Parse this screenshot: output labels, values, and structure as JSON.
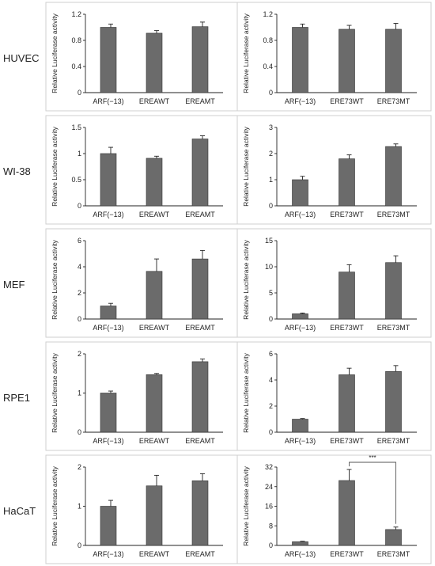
{
  "figure": {
    "y_axis_label": "Relative Luciferase activity",
    "rows": [
      {
        "label": "HUVEC",
        "charts": [
          {
            "type": "bar",
            "categories": [
              "ARF(−13)",
              "EREAWT",
              "EREAMT"
            ],
            "values": [
              1.0,
              0.91,
              1.01
            ],
            "errors": [
              0.05,
              0.04,
              0.07
            ],
            "ylim": [
              0,
              1.2
            ],
            "yticks": [
              "0",
              "0.4",
              "0.8",
              "1.2"
            ],
            "ytick_values": [
              0,
              0.4,
              0.8,
              1.2
            ],
            "ylabel": "Relative Luciferase activity",
            "color": "#6b6b6b"
          },
          {
            "type": "bar",
            "categories": [
              "ARF(−13)",
              "ERE73WT",
              "ERE73MT"
            ],
            "values": [
              1.0,
              0.97,
              0.97
            ],
            "errors": [
              0.05,
              0.06,
              0.09
            ],
            "ylim": [
              0,
              1.2
            ],
            "yticks": [
              "0",
              "0.4",
              "0.8",
              "1.2"
            ],
            "ytick_values": [
              0,
              0.4,
              0.8,
              1.2
            ],
            "ylabel": "Relative Luciferase activity",
            "color": "#6b6b6b"
          }
        ]
      },
      {
        "label": "WI-38",
        "charts": [
          {
            "type": "bar",
            "categories": [
              "ARF(−13)",
              "EREAWT",
              "EREAMT"
            ],
            "values": [
              1.0,
              0.91,
              1.28
            ],
            "errors": [
              0.12,
              0.04,
              0.06
            ],
            "ylim": [
              0,
              1.5
            ],
            "yticks": [
              "0",
              "0.5",
              "1",
              "1.5"
            ],
            "ytick_values": [
              0,
              0.5,
              1,
              1.5
            ],
            "ylabel": "Relative Luciferase activity",
            "color": "#6b6b6b"
          },
          {
            "type": "bar",
            "categories": [
              "ARF(−13)",
              "ERE73WT",
              "ERE73MT"
            ],
            "values": [
              1.0,
              1.8,
              2.27
            ],
            "errors": [
              0.13,
              0.15,
              0.1
            ],
            "ylim": [
              0,
              3
            ],
            "yticks": [
              "0",
              "1",
              "2",
              "3"
            ],
            "ytick_values": [
              0,
              1,
              2,
              3
            ],
            "ylabel": "Relative Luciferase activity",
            "color": "#6b6b6b"
          }
        ]
      },
      {
        "label": "MEF",
        "charts": [
          {
            "type": "bar",
            "categories": [
              "ARF(−13)",
              "EREAWT",
              "EREAMT"
            ],
            "values": [
              1.0,
              3.65,
              4.6
            ],
            "errors": [
              0.2,
              0.95,
              0.65
            ],
            "ylim": [
              0,
              6
            ],
            "yticks": [
              "0",
              "2",
              "4",
              "6"
            ],
            "ytick_values": [
              0,
              2,
              4,
              6
            ],
            "ylabel": "Relative Luciferase activity",
            "color": "#6b6b6b"
          },
          {
            "type": "bar",
            "categories": [
              "ARF(−13)",
              "ERE73WT",
              "ERE73MT"
            ],
            "values": [
              1.0,
              9.0,
              10.8
            ],
            "errors": [
              0.15,
              1.4,
              1.3
            ],
            "ylim": [
              0,
              15
            ],
            "yticks": [
              "0",
              "5",
              "10",
              "15"
            ],
            "ytick_values": [
              0,
              5,
              10,
              15
            ],
            "ylabel": "Relative Luciferase activity",
            "color": "#6b6b6b"
          }
        ]
      },
      {
        "label": "RPE1",
        "charts": [
          {
            "type": "bar",
            "categories": [
              "ARF(−13)",
              "EREAWT",
              "EREAMT"
            ],
            "values": [
              1.0,
              1.47,
              1.8
            ],
            "errors": [
              0.05,
              0.03,
              0.07
            ],
            "ylim": [
              0,
              2
            ],
            "yticks": [
              "0",
              "1",
              "2"
            ],
            "ytick_values": [
              0,
              1,
              2
            ],
            "ylabel": "Relative Luciferase activity",
            "color": "#6b6b6b"
          },
          {
            "type": "bar",
            "categories": [
              "ARF(−13)",
              "ERE73WT",
              "ERE73MT"
            ],
            "values": [
              1.0,
              4.4,
              4.65
            ],
            "errors": [
              0.05,
              0.5,
              0.45
            ],
            "ylim": [
              0,
              6
            ],
            "yticks": [
              "0",
              "2",
              "4",
              "6"
            ],
            "ytick_values": [
              0,
              2,
              4,
              6
            ],
            "ylabel": "Relative Luciferase activity",
            "color": "#6b6b6b"
          }
        ]
      },
      {
        "label": "HaCaT",
        "charts": [
          {
            "type": "bar",
            "categories": [
              "ARF(−13)",
              "EREAWT",
              "EREAMT"
            ],
            "values": [
              1.0,
              1.52,
              1.65
            ],
            "errors": [
              0.15,
              0.27,
              0.18
            ],
            "ylim": [
              0,
              2
            ],
            "yticks": [
              "0",
              "1",
              "2"
            ],
            "ytick_values": [
              0,
              1,
              2
            ],
            "ylabel": "Relative Luciferase activity",
            "color": "#6b6b6b"
          },
          {
            "type": "bar",
            "categories": [
              "ARF(−13)",
              "ERE73WT",
              "ERE73MT"
            ],
            "values": [
              1.5,
              26.5,
              6.5
            ],
            "errors": [
              0.2,
              4.5,
              1.0
            ],
            "ylim": [
              0,
              32
            ],
            "yticks": [
              "0",
              "8",
              "16",
              "24",
              "32"
            ],
            "ytick_values": [
              0,
              8,
              16,
              24,
              32
            ],
            "ylabel": "Relative Luciferase activity",
            "color": "#6b6b6b",
            "significance": {
              "between": [
                "ERE73WT",
                "ERE73MT"
              ],
              "label": "***"
            }
          }
        ]
      }
    ]
  },
  "chart_data": [
    {
      "row": "HUVEC",
      "type": "bar",
      "categories": [
        "ARF(−13)",
        "EREAWT",
        "EREAMT"
      ],
      "values": [
        1.0,
        0.91,
        1.01
      ],
      "ylabel": "Relative Luciferase activity",
      "ylim": [
        0,
        1.2
      ]
    },
    {
      "row": "HUVEC",
      "type": "bar",
      "categories": [
        "ARF(−13)",
        "ERE73WT",
        "ERE73MT"
      ],
      "values": [
        1.0,
        0.97,
        0.97
      ],
      "ylabel": "Relative Luciferase activity",
      "ylim": [
        0,
        1.2
      ]
    },
    {
      "row": "WI-38",
      "type": "bar",
      "categories": [
        "ARF(−13)",
        "EREAWT",
        "EREAMT"
      ],
      "values": [
        1.0,
        0.91,
        1.28
      ],
      "ylabel": "Relative Luciferase activity",
      "ylim": [
        0,
        1.5
      ]
    },
    {
      "row": "WI-38",
      "type": "bar",
      "categories": [
        "ARF(−13)",
        "ERE73WT",
        "ERE73MT"
      ],
      "values": [
        1.0,
        1.8,
        2.27
      ],
      "ylabel": "Relative Luciferase activity",
      "ylim": [
        0,
        3
      ]
    },
    {
      "row": "MEF",
      "type": "bar",
      "categories": [
        "ARF(−13)",
        "EREAWT",
        "EREAMT"
      ],
      "values": [
        1.0,
        3.65,
        4.6
      ],
      "ylabel": "Relative Luciferase activity",
      "ylim": [
        0,
        6
      ]
    },
    {
      "row": "MEF",
      "type": "bar",
      "categories": [
        "ARF(−13)",
        "ERE73WT",
        "ERE73MT"
      ],
      "values": [
        1.0,
        9.0,
        10.8
      ],
      "ylabel": "Relative Luciferase activity",
      "ylim": [
        0,
        15
      ]
    },
    {
      "row": "RPE1",
      "type": "bar",
      "categories": [
        "ARF(−13)",
        "EREAWT",
        "EREAMT"
      ],
      "values": [
        1.0,
        1.47,
        1.8
      ],
      "ylabel": "Relative Luciferase activity",
      "ylim": [
        0,
        2
      ]
    },
    {
      "row": "RPE1",
      "type": "bar",
      "categories": [
        "ARF(−13)",
        "ERE73WT",
        "ERE73MT"
      ],
      "values": [
        1.0,
        4.4,
        4.65
      ],
      "ylabel": "Relative Luciferase activity",
      "ylim": [
        0,
        6
      ]
    },
    {
      "row": "HaCaT",
      "type": "bar",
      "categories": [
        "ARF(−13)",
        "EREAWT",
        "EREAMT"
      ],
      "values": [
        1.0,
        1.52,
        1.65
      ],
      "ylabel": "Relative Luciferase activity",
      "ylim": [
        0,
        2
      ]
    },
    {
      "row": "HaCaT",
      "type": "bar",
      "categories": [
        "ARF(−13)",
        "ERE73WT",
        "ERE73MT"
      ],
      "values": [
        1.5,
        26.5,
        6.5
      ],
      "ylabel": "Relative Luciferase activity",
      "ylim": [
        0,
        32
      ]
    }
  ]
}
